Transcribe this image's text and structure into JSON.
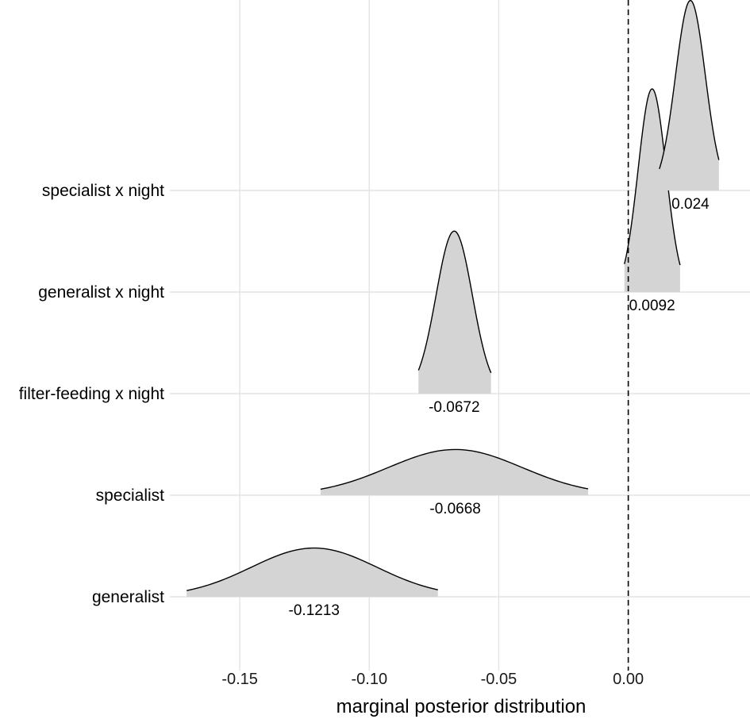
{
  "chart_data": {
    "type": "ridgeline",
    "xlabel": "marginal posterior distribution",
    "x_ticks": [
      -0.15,
      -0.1,
      -0.05,
      0.0
    ],
    "x_tick_labels": [
      "-0.15",
      "-0.10",
      "-0.05",
      "0.00"
    ],
    "xlim": [
      -0.177,
      0.047
    ],
    "reference_line": {
      "x": 0.0,
      "style": "dashed"
    },
    "grid": true,
    "fill_color": "#d4d4d4",
    "outline_color": "#000000",
    "series": [
      {
        "name": "generalist",
        "mean": -0.1213,
        "label": "-0.1213",
        "lower": -0.1705,
        "upper": -0.0735,
        "peak_height": 0.48
      },
      {
        "name": "specialist",
        "mean": -0.0668,
        "label": "-0.0668",
        "lower": -0.1188,
        "upper": -0.0155,
        "peak_height": 0.45
      },
      {
        "name": "filter-feeding x night",
        "mean": -0.0672,
        "label": "-0.0672",
        "lower": -0.081,
        "upper": -0.053,
        "peak_height": 1.6
      },
      {
        "name": "generalist x night",
        "mean": 0.0092,
        "label": "0.0092",
        "lower": -0.0015,
        "upper": 0.02,
        "peak_height": 2.0
      },
      {
        "name": "specialist x night",
        "mean": 0.024,
        "label": "0.024",
        "lower": 0.012,
        "upper": 0.035,
        "peak_height": 1.87
      }
    ]
  }
}
